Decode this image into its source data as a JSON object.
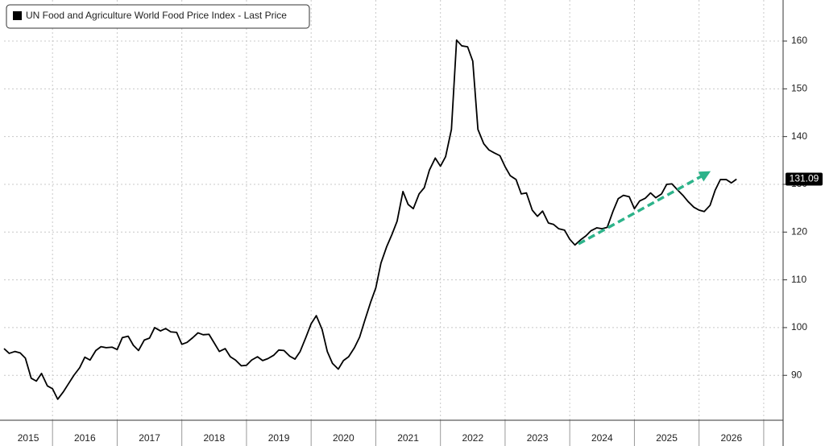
{
  "chart_data": {
    "type": "line",
    "series": [
      {
        "name": "UN Food and Agriculture World Food Price Index - Last Price",
        "color": "#000000",
        "values": [
          95.6,
          94.6,
          95.0,
          94.7,
          93.6,
          89.4,
          88.8,
          90.4,
          87.8,
          87.2,
          85.0,
          86.6,
          88.3,
          90.0,
          91.6,
          93.8,
          93.2,
          95.2,
          96.0,
          95.8,
          95.9,
          95.4,
          97.9,
          98.2,
          96.3,
          95.2,
          97.4,
          97.8,
          100.0,
          99.3,
          99.8,
          99.1,
          99.0,
          96.5,
          96.9,
          97.9,
          98.9,
          98.5,
          98.6,
          96.8,
          95.0,
          95.6,
          93.9,
          93.2,
          92.0,
          92.1,
          93.2,
          93.9,
          93.1,
          93.5,
          94.2,
          95.3,
          95.2,
          94.0,
          93.4,
          95.0,
          98.0,
          100.8,
          102.5,
          99.6,
          95.0,
          92.5,
          91.3,
          93.1,
          93.9,
          95.8,
          98.0,
          101.5,
          105.3,
          108.3,
          113.5,
          117.0,
          119.5,
          122.3,
          128.5,
          125.8,
          124.9,
          128.0,
          129.3,
          133.0,
          135.5,
          133.8,
          135.8,
          141.5,
          160.2,
          159.0,
          158.8,
          155.8,
          141.5,
          138.5,
          137.2,
          136.6,
          136.0,
          133.7,
          131.8,
          131.0,
          128.0,
          128.2,
          124.6,
          123.3,
          124.4,
          121.9,
          121.6,
          120.7,
          120.4,
          118.5,
          117.3,
          118.4,
          119.2,
          120.3,
          120.9,
          120.7,
          121.0,
          124.4,
          127.0,
          127.7,
          127.4,
          124.9,
          126.5,
          127.1,
          128.2,
          127.2,
          128.0,
          130.0,
          130.1,
          128.8,
          127.7,
          126.4,
          125.2,
          124.6,
          124.3,
          125.6,
          128.8,
          131.0,
          131.0,
          130.3,
          131.09
        ]
      }
    ],
    "x": [
      2015.25,
      2015.33,
      2015.42,
      2015.5,
      2015.58,
      2015.67,
      2015.75,
      2015.83,
      2015.92,
      2016.0,
      2016.08,
      2016.17,
      2016.25,
      2016.33,
      2016.42,
      2016.5,
      2016.58,
      2016.67,
      2016.75,
      2016.83,
      2016.92,
      2017.0,
      2017.08,
      2017.17,
      2017.25,
      2017.33,
      2017.42,
      2017.5,
      2017.58,
      2017.67,
      2017.75,
      2017.83,
      2017.92,
      2018.0,
      2018.08,
      2018.17,
      2018.25,
      2018.33,
      2018.42,
      2018.5,
      2018.58,
      2018.67,
      2018.75,
      2018.83,
      2018.92,
      2019.0,
      2019.08,
      2019.17,
      2019.25,
      2019.33,
      2019.42,
      2019.5,
      2019.58,
      2019.67,
      2019.75,
      2019.83,
      2019.92,
      2020.0,
      2020.08,
      2020.17,
      2020.25,
      2020.33,
      2020.42,
      2020.5,
      2020.58,
      2020.67,
      2020.75,
      2020.83,
      2020.92,
      2021.0,
      2021.08,
      2021.17,
      2021.25,
      2021.33,
      2021.42,
      2021.5,
      2021.58,
      2021.67,
      2021.75,
      2021.83,
      2021.92,
      2022.0,
      2022.08,
      2022.17,
      2022.25,
      2022.33,
      2022.42,
      2022.5,
      2022.58,
      2022.67,
      2022.75,
      2022.83,
      2022.92,
      2023.0,
      2023.08,
      2023.17,
      2023.25,
      2023.33,
      2023.42,
      2023.5,
      2023.58,
      2023.67,
      2023.75,
      2023.83,
      2023.92,
      2024.0,
      2024.08,
      2024.17,
      2024.25,
      2024.33,
      2024.42,
      2024.5,
      2024.58,
      2024.67,
      2024.75,
      2024.83,
      2024.92,
      2025.0,
      2025.08,
      2025.17,
      2025.25,
      2025.33,
      2025.42,
      2025.5,
      2025.58,
      2025.67,
      2025.75,
      2025.83,
      2025.92,
      2026.0,
      2026.08,
      2026.17,
      2026.25,
      2026.33,
      2026.42,
      2026.5,
      2026.58
    ],
    "xlim": [
      2015.25,
      2027.3
    ],
    "years": [
      2015,
      2016,
      2017,
      2018,
      2019,
      2020,
      2021,
      2022,
      2023,
      2024,
      2025,
      2026
    ],
    "ylim": [
      80.6,
      168.6
    ],
    "yticks": [
      90,
      100,
      110,
      120,
      130,
      140,
      150,
      160
    ],
    "grid": true
  }
}
